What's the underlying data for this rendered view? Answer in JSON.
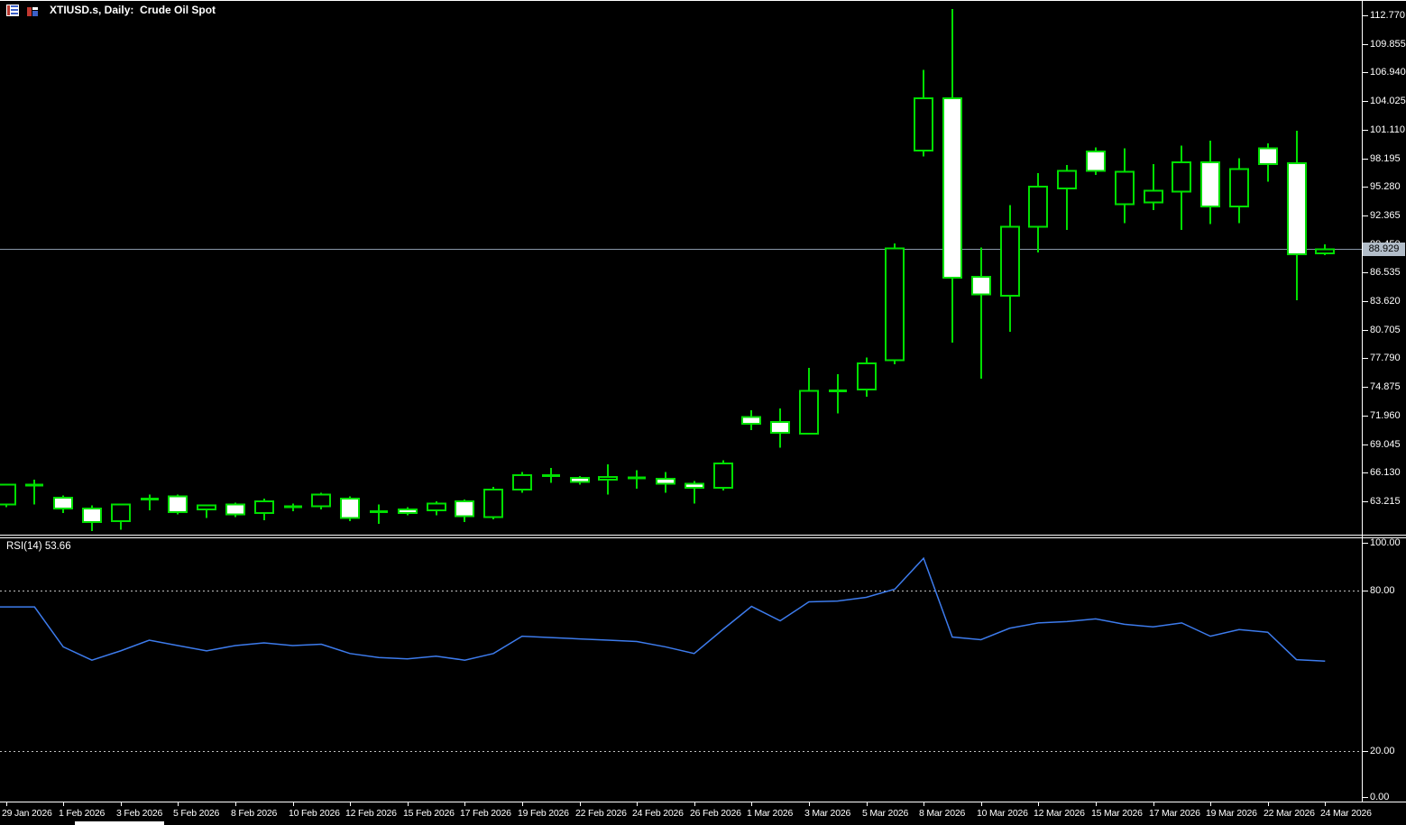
{
  "window": {
    "title": "XTIUSD.s, Daily:  Crude Oil Spot"
  },
  "header_icons": [
    {
      "name": "chart-list-icon"
    },
    {
      "name": "bar-chart-icon"
    }
  ],
  "price_axis": {
    "labels": [
      "112.770",
      "109.855",
      "106.940",
      "104.025",
      "101.110",
      "98.195",
      "95.280",
      "92.365",
      "89.450",
      "86.535",
      "83.620",
      "80.705",
      "77.790",
      "74.875",
      "71.960",
      "69.045",
      "66.130",
      "63.215"
    ],
    "current_price": "88.929"
  },
  "indicator_pane": {
    "label": "RSI(14) 53.66",
    "levels": [
      "100.00",
      "80.00",
      "20.00",
      "0.00"
    ],
    "level_values": [
      100,
      80,
      20,
      0
    ]
  },
  "time_axis": {
    "labels": [
      "29 Jan 2026",
      "1 Feb 2026",
      "3 Feb 2026",
      "5 Feb 2026",
      "8 Feb 2026",
      "10 Feb 2026",
      "12 Feb 2026",
      "15 Feb 2026",
      "17 Feb 2026",
      "19 Feb 2026",
      "22 Feb 2026",
      "24 Feb 2026",
      "26 Feb 2026",
      "1 Mar 2026",
      "3 Mar 2026",
      "5 Mar 2026",
      "8 Mar 2026",
      "10 Mar 2026",
      "12 Mar 2026",
      "15 Mar 2026",
      "17 Mar 2026",
      "19 Mar 2026",
      "22 Mar 2026",
      "24 Mar 2026"
    ]
  },
  "colors": {
    "background": "#000000",
    "candle_outline": "#00DF00",
    "bull_fill": "#000000",
    "bear_fill": "#FFFFFF",
    "rsi_line": "#3D7BEC",
    "current_price_line": "#8896A8",
    "price_tag_bg": "#B2BDC9",
    "price_tag_text": "#000000",
    "axis_text": "#FFFFFF",
    "separator": "#FFFFFF",
    "level_dashed": "#C0C0C0"
  },
  "chart_data": {
    "type": "candlestick",
    "symbol": "XTIUSD.s",
    "timeframe": "Daily",
    "description": "Crude Oil Spot",
    "title": "XTIUSD.s, Daily: Crude Oil Spot",
    "price_axis_range": [
      63.215,
      112.77
    ],
    "price_grid_step": 2.915,
    "current_price": 88.929,
    "grid": "off",
    "bars_per_time_tick": 2,
    "x_tick_labels": [
      "29 Jan 2026",
      "1 Feb 2026",
      "3 Feb 2026",
      "5 Feb 2026",
      "8 Feb 2026",
      "10 Feb 2026",
      "12 Feb 2026",
      "15 Feb 2026",
      "17 Feb 2026",
      "19 Feb 2026",
      "22 Feb 2026",
      "24 Feb 2026",
      "26 Feb 2026",
      "1 Mar 2026",
      "3 Mar 2026",
      "5 Mar 2026",
      "8 Mar 2026",
      "10 Mar 2026",
      "12 Mar 2026",
      "15 Mar 2026",
      "17 Mar 2026",
      "19 Mar 2026",
      "22 Mar 2026",
      "24 Mar 2026"
    ],
    "candles_ohlc": [
      [
        62.9,
        65.0,
        62.6,
        64.9
      ],
      [
        64.8,
        65.4,
        62.9,
        64.9
      ],
      [
        63.6,
        63.8,
        62.0,
        62.5
      ],
      [
        62.5,
        62.8,
        60.2,
        61.1
      ],
      [
        61.2,
        63.0,
        60.3,
        62.9
      ],
      [
        63.4,
        63.9,
        62.3,
        63.5
      ],
      [
        63.7,
        63.9,
        61.9,
        62.1
      ],
      [
        62.4,
        62.9,
        61.5,
        62.8
      ],
      [
        62.9,
        63.1,
        61.6,
        61.9
      ],
      [
        62.0,
        63.5,
        61.3,
        63.2
      ],
      [
        62.6,
        63.0,
        62.2,
        62.7
      ],
      [
        62.7,
        64.1,
        62.4,
        63.9
      ],
      [
        63.5,
        63.7,
        61.2,
        61.5
      ],
      [
        62.1,
        62.9,
        60.9,
        62.2
      ],
      [
        62.4,
        62.6,
        61.8,
        62.0
      ],
      [
        62.3,
        63.2,
        61.8,
        63.0
      ],
      [
        63.2,
        63.4,
        61.1,
        61.7
      ],
      [
        61.6,
        64.7,
        61.4,
        64.4
      ],
      [
        64.4,
        66.2,
        64.1,
        65.9
      ],
      [
        65.8,
        66.6,
        65.1,
        65.9
      ],
      [
        65.6,
        65.8,
        64.9,
        65.2
      ],
      [
        65.4,
        67.0,
        63.9,
        65.7
      ],
      [
        65.5,
        66.4,
        64.5,
        65.7
      ],
      [
        65.5,
        66.2,
        64.1,
        65.0
      ],
      [
        65.0,
        65.3,
        63.0,
        64.6
      ],
      [
        64.6,
        67.4,
        64.3,
        67.1
      ],
      [
        71.8,
        72.5,
        70.5,
        71.1
      ],
      [
        71.3,
        72.7,
        68.7,
        70.2
      ],
      [
        70.1,
        76.8,
        70.0,
        74.5
      ],
      [
        74.4,
        76.2,
        72.2,
        74.6
      ],
      [
        74.6,
        77.9,
        73.9,
        77.3
      ],
      [
        77.6,
        89.5,
        77.2,
        89.0
      ],
      [
        99.0,
        107.2,
        98.4,
        104.3
      ],
      [
        104.3,
        113.4,
        79.4,
        86.0
      ],
      [
        86.1,
        89.1,
        75.7,
        84.3
      ],
      [
        84.2,
        93.4,
        80.5,
        91.2
      ],
      [
        91.2,
        96.7,
        88.6,
        95.3
      ],
      [
        95.1,
        97.5,
        90.9,
        96.9
      ],
      [
        98.9,
        99.3,
        96.5,
        96.9
      ],
      [
        93.5,
        99.2,
        91.6,
        96.8
      ],
      [
        93.7,
        97.6,
        92.9,
        94.9
      ],
      [
        94.8,
        99.5,
        90.9,
        97.8
      ],
      [
        97.8,
        100.0,
        91.5,
        93.3
      ],
      [
        93.3,
        98.2,
        91.6,
        97.1
      ],
      [
        99.2,
        99.7,
        95.8,
        97.6
      ],
      [
        97.7,
        101.0,
        83.7,
        88.4
      ],
      [
        88.5,
        89.4,
        88.3,
        88.93
      ]
    ],
    "indicator": {
      "type": "line",
      "name": "RSI",
      "period": 14,
      "current": 53.66,
      "range": [
        0,
        100
      ],
      "dashed_levels": [
        80,
        20
      ],
      "values": [
        74,
        74,
        59,
        54,
        57.5,
        61.5,
        59.5,
        57.5,
        59.5,
        60.5,
        59.5,
        60,
        56.5,
        55,
        54.5,
        55.5,
        54,
        56.5,
        63,
        62.5,
        62,
        61.5,
        61,
        59,
        56.5,
        65.5,
        74.2,
        68.8,
        75.9,
        76.2,
        77.6,
        80.7,
        92.3,
        62.7,
        61.7,
        66,
        68,
        68.5,
        69.5,
        67.5,
        66.5,
        68,
        63,
        65.5,
        64.5,
        54.2,
        53.66
      ]
    }
  }
}
